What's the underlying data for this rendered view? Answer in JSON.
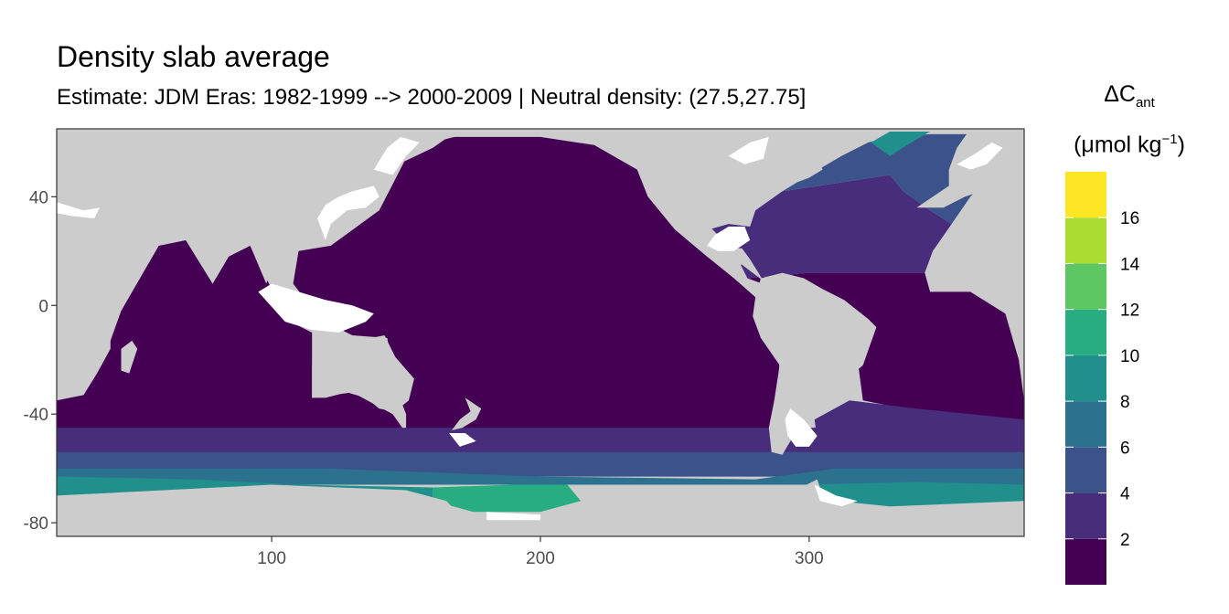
{
  "chart_data": {
    "type": "heatmap",
    "title": "Density slab average",
    "subtitle": "Estimate: JDM Eras: 1982-1999 --> 2000-2009 | Neutral density: (27.5,27.75]",
    "xlabel": "",
    "ylabel": "",
    "xlim": [
      20,
      380
    ],
    "ylim": [
      -85,
      65
    ],
    "x_ticks": [
      "100",
      "200",
      "300"
    ],
    "x_tick_values": [
      100,
      200,
      300
    ],
    "y_ticks": [
      "40",
      "0",
      "-40",
      "-80"
    ],
    "y_tick_values": [
      40,
      0,
      -40,
      -80
    ],
    "legend": {
      "title_main": "ΔC",
      "title_sub": "ant",
      "unit_prefix": "(μmol kg",
      "unit_sup": "−1",
      "unit_suffix": ")",
      "placement": "right",
      "breaks": [
        "2",
        "4",
        "6",
        "8",
        "10",
        "12",
        "14",
        "16"
      ],
      "bins": [
        0,
        2,
        4,
        6,
        8,
        10,
        12,
        14,
        16,
        18
      ],
      "colors": [
        "#440154",
        "#472d7b",
        "#3b528b",
        "#2c728e",
        "#21908d",
        "#27ad81",
        "#5dc863",
        "#aadc32",
        "#fde725"
      ]
    },
    "background_color": "#cccccc",
    "no_data_color": "#ffffff",
    "regions": [
      {
        "name": "pacific",
        "value": 1,
        "poly": [
          [
            122,
            22
          ],
          [
            140,
            35
          ],
          [
            152,
            58
          ],
          [
            168,
            62
          ],
          [
            200,
            62
          ],
          [
            220,
            59
          ],
          [
            236,
            50
          ],
          [
            240,
            40
          ],
          [
            250,
            28
          ],
          [
            262,
            18
          ],
          [
            272,
            10
          ],
          [
            280,
            3
          ],
          [
            282,
            -10
          ],
          [
            289,
            -20
          ],
          [
            288,
            -35
          ],
          [
            287,
            -48
          ],
          [
            240,
            -50
          ],
          [
            200,
            -48
          ],
          [
            150,
            -47
          ],
          [
            150,
            -40
          ],
          [
            146,
            -30
          ],
          [
            143,
            -12
          ],
          [
            130,
            -11
          ],
          [
            118,
            -5
          ],
          [
            108,
            8
          ],
          [
            110,
            20
          ]
        ]
      },
      {
        "name": "indian",
        "value": 1,
        "poly": [
          [
            20,
            -40
          ],
          [
            20,
            -33
          ],
          [
            30,
            -25
          ],
          [
            40,
            -13
          ],
          [
            44,
            -2
          ],
          [
            51,
            10
          ],
          [
            58,
            22
          ],
          [
            68,
            24
          ],
          [
            78,
            8
          ],
          [
            84,
            18
          ],
          [
            92,
            22
          ],
          [
            99,
            8
          ],
          [
            105,
            -5
          ],
          [
            115,
            -10
          ],
          [
            115,
            -34
          ],
          [
            130,
            -32
          ],
          [
            145,
            -40
          ],
          [
            150,
            -47
          ],
          [
            20,
            -47
          ]
        ]
      },
      {
        "name": "atlantic-tropical",
        "value": 1,
        "poly": [
          [
            277,
            10
          ],
          [
            300,
            12
          ],
          [
            320,
            12
          ],
          [
            343,
            12
          ],
          [
            345,
            5
          ],
          [
            360,
            5
          ],
          [
            373,
            -3
          ],
          [
            378,
            -20
          ],
          [
            380,
            -35
          ],
          [
            380,
            -45
          ],
          [
            345,
            -40
          ],
          [
            320,
            -35
          ],
          [
            318,
            -20
          ],
          [
            314,
            -5
          ],
          [
            305,
            0
          ]
        ]
      },
      {
        "name": "atlantic-subtropical",
        "value": 3,
        "poly": [
          [
            262,
            30
          ],
          [
            280,
            35
          ],
          [
            290,
            42
          ],
          [
            310,
            45
          ],
          [
            330,
            48
          ],
          [
            335,
            42
          ],
          [
            345,
            35
          ],
          [
            353,
            30
          ],
          [
            346,
            20
          ],
          [
            343,
            12
          ],
          [
            320,
            12
          ],
          [
            300,
            12
          ],
          [
            277,
            10
          ],
          [
            272,
            20
          ]
        ]
      },
      {
        "name": "atlantic-north",
        "value": 5,
        "poly": [
          [
            290,
            42
          ],
          [
            300,
            48
          ],
          [
            312,
            55
          ],
          [
            322,
            60
          ],
          [
            330,
            62
          ],
          [
            345,
            63
          ],
          [
            365,
            63
          ],
          [
            373,
            60
          ],
          [
            370,
            50
          ],
          [
            360,
            40
          ],
          [
            353,
            30
          ],
          [
            345,
            35
          ],
          [
            335,
            42
          ],
          [
            330,
            48
          ],
          [
            310,
            45
          ]
        ]
      },
      {
        "name": "atlantic-nordic",
        "value": 9,
        "poly": [
          [
            323,
            60
          ],
          [
            330,
            55
          ],
          [
            338,
            60
          ],
          [
            345,
            64
          ],
          [
            330,
            64
          ]
        ]
      },
      {
        "name": "atlantic-south",
        "value": 3,
        "poly": [
          [
            315,
            -35
          ],
          [
            340,
            -38
          ],
          [
            380,
            -42
          ],
          [
            380,
            -55
          ],
          [
            310,
            -55
          ],
          [
            303,
            -50
          ],
          [
            302,
            -42
          ]
        ]
      },
      {
        "name": "southern-band-1",
        "value": 3,
        "poly": [
          [
            20,
            -45
          ],
          [
            380,
            -45
          ],
          [
            380,
            -58
          ],
          [
            20,
            -58
          ]
        ]
      },
      {
        "name": "southern-band-2",
        "value": 5,
        "poly": [
          [
            20,
            -54
          ],
          [
            380,
            -54
          ],
          [
            380,
            -63
          ],
          [
            20,
            -63
          ]
        ]
      },
      {
        "name": "southern-band-3",
        "value": 7,
        "poly": [
          [
            20,
            -60
          ],
          [
            120,
            -60
          ],
          [
            200,
            -63
          ],
          [
            280,
            -64
          ],
          [
            310,
            -60
          ],
          [
            380,
            -60
          ],
          [
            380,
            -66
          ],
          [
            20,
            -66
          ]
        ]
      },
      {
        "name": "antarctic-shelf-east",
        "value": 9,
        "poly": [
          [
            20,
            -63
          ],
          [
            70,
            -64
          ],
          [
            110,
            -66
          ],
          [
            160,
            -67
          ],
          [
            160,
            -71
          ],
          [
            20,
            -71
          ]
        ]
      },
      {
        "name": "ross-sea",
        "value": 11,
        "poly": [
          [
            160,
            -67
          ],
          [
            190,
            -66
          ],
          [
            210,
            -66
          ],
          [
            215,
            -72
          ],
          [
            200,
            -76
          ],
          [
            175,
            -76
          ],
          [
            160,
            -72
          ]
        ]
      },
      {
        "name": "weddell-sea",
        "value": 9,
        "poly": [
          [
            300,
            -66
          ],
          [
            340,
            -65
          ],
          [
            380,
            -66
          ],
          [
            380,
            -72
          ],
          [
            330,
            -74
          ],
          [
            310,
            -72
          ]
        ]
      }
    ]
  }
}
